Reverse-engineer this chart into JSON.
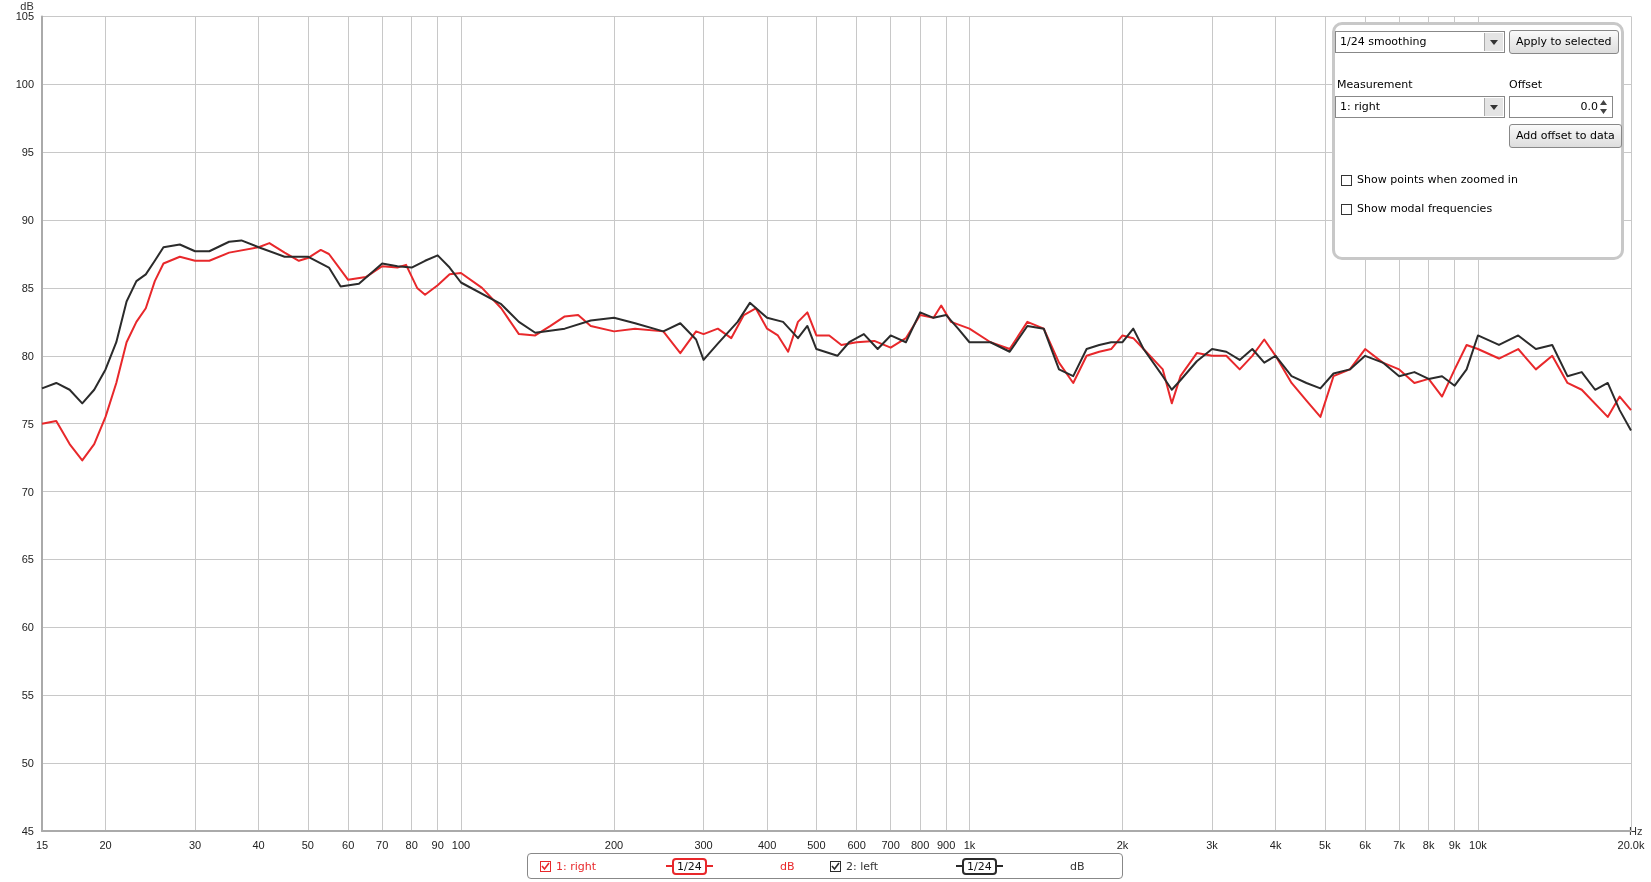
{
  "chart_data": {
    "type": "line",
    "xlabel": "Hz",
    "ylabel": "dB",
    "log": "x",
    "grid": true,
    "legend": "bottom",
    "marker": "none",
    "line_style": "solid",
    "xlim": [
      15,
      20000
    ],
    "ylim": [
      45,
      105
    ],
    "xticks": [
      15,
      20,
      30,
      40,
      50,
      60,
      70,
      80,
      90,
      100,
      200,
      300,
      400,
      500,
      600,
      700,
      800,
      900,
      {
        "value": 1000,
        "label": "1k"
      },
      {
        "value": 2000,
        "label": "2k"
      },
      {
        "value": 3000,
        "label": "3k"
      },
      {
        "value": 4000,
        "label": "4k"
      },
      {
        "value": 5000,
        "label": "5k"
      },
      {
        "value": 6000,
        "label": "6k"
      },
      {
        "value": 7000,
        "label": "7k"
      },
      {
        "value": 8000,
        "label": "8k"
      },
      {
        "value": 9000,
        "label": "9k"
      },
      {
        "value": 10000,
        "label": "10k"
      },
      {
        "value": 20000,
        "label": "20.0k"
      }
    ],
    "yticks": [
      45,
      50,
      55,
      60,
      65,
      70,
      75,
      80,
      85,
      90,
      95,
      100,
      105
    ],
    "series": [
      {
        "name": "1: right",
        "color": "#e8282b",
        "x": [
          15,
          16,
          17,
          18,
          19,
          20,
          21,
          22,
          23,
          24,
          25,
          26,
          28,
          30,
          32,
          35,
          40,
          42,
          45,
          48,
          50,
          53,
          55,
          60,
          65,
          70,
          75,
          78,
          82,
          85,
          90,
          95,
          100,
          110,
          120,
          130,
          140,
          150,
          160,
          170,
          180,
          200,
          220,
          250,
          270,
          290,
          300,
          320,
          340,
          360,
          380,
          400,
          420,
          440,
          460,
          480,
          500,
          530,
          560,
          600,
          650,
          700,
          750,
          800,
          850,
          880,
          920,
          1000,
          1100,
          1200,
          1300,
          1400,
          1500,
          1600,
          1700,
          1800,
          1900,
          2000,
          2100,
          2200,
          2400,
          2500,
          2600,
          2800,
          3000,
          3200,
          3400,
          3600,
          3800,
          4000,
          4300,
          4600,
          4900,
          5200,
          5600,
          6000,
          6500,
          7000,
          7500,
          8000,
          8500,
          9000,
          9500,
          10000,
          11000,
          12000,
          13000,
          14000,
          15000,
          16000,
          18000,
          19000,
          20000
        ],
        "values": [
          75.0,
          75.2,
          73.5,
          72.3,
          73.5,
          75.5,
          78,
          81,
          82.5,
          83.5,
          85.5,
          86.8,
          87.3,
          87.0,
          87.0,
          87.6,
          88.0,
          88.3,
          87.6,
          87.0,
          87.2,
          87.8,
          87.5,
          85.6,
          85.8,
          86.6,
          86.5,
          86.7,
          85.0,
          84.5,
          85.2,
          86.0,
          86.1,
          85.0,
          83.5,
          81.6,
          81.5,
          82.2,
          82.9,
          83.0,
          82.2,
          81.8,
          82.0,
          81.8,
          80.2,
          81.8,
          81.6,
          82.0,
          81.3,
          83.0,
          83.5,
          82.0,
          81.5,
          80.3,
          82.5,
          83.2,
          81.5,
          81.5,
          80.8,
          81.0,
          81.1,
          80.6,
          81.3,
          83.0,
          82.8,
          83.7,
          82.5,
          82.0,
          81.0,
          80.5,
          82.5,
          82.0,
          79.5,
          78.0,
          80.0,
          80.3,
          80.5,
          81.5,
          81.3,
          80.5,
          79.0,
          76.5,
          78.5,
          80.2,
          80.0,
          80.0,
          79.0,
          80.0,
          81.2,
          80.0,
          78.0,
          76.7,
          75.5,
          78.5,
          79.0,
          80.5,
          79.5,
          79.0,
          78.0,
          78.3,
          77.0,
          79.0,
          80.8,
          80.5,
          79.8,
          80.5,
          79.0,
          80.0,
          78.0,
          77.5,
          75.5,
          77.0,
          76.0
        ]
      },
      {
        "name": "2: left",
        "color": "#2b2b2b",
        "x": [
          15,
          16,
          17,
          18,
          19,
          20,
          21,
          22,
          23,
          24,
          25,
          26,
          28,
          30,
          32,
          35,
          37,
          40,
          45,
          50,
          55,
          58,
          63,
          70,
          75,
          80,
          85,
          90,
          95,
          100,
          120,
          130,
          140,
          160,
          180,
          200,
          220,
          250,
          270,
          290,
          300,
          320,
          350,
          370,
          400,
          430,
          460,
          480,
          500,
          550,
          580,
          620,
          660,
          700,
          750,
          800,
          850,
          900,
          950,
          1000,
          1100,
          1200,
          1300,
          1400,
          1500,
          1600,
          1700,
          1800,
          1900,
          2000,
          2100,
          2200,
          2400,
          2500,
          2600,
          2800,
          3000,
          3200,
          3400,
          3600,
          3800,
          4000,
          4300,
          4600,
          4900,
          5200,
          5600,
          6000,
          6500,
          7000,
          7500,
          8000,
          8500,
          9000,
          9500,
          10000,
          11000,
          12000,
          13000,
          14000,
          15000,
          16000,
          17000,
          18000,
          19000,
          20000
        ],
        "values": [
          77.6,
          78.0,
          77.5,
          76.5,
          77.5,
          79,
          81,
          84,
          85.5,
          86,
          87,
          88,
          88.2,
          87.7,
          87.7,
          88.4,
          88.5,
          88.0,
          87.3,
          87.3,
          86.5,
          85.1,
          85.3,
          86.8,
          86.6,
          86.5,
          87.0,
          87.4,
          86.5,
          85.4,
          83.8,
          82.5,
          81.7,
          82.0,
          82.6,
          82.8,
          82.4,
          81.8,
          82.4,
          81.2,
          79.7,
          80.9,
          82.5,
          83.9,
          82.8,
          82.5,
          81.3,
          82.2,
          80.5,
          80.0,
          81.0,
          81.6,
          80.5,
          81.5,
          81.0,
          83.2,
          82.8,
          83.0,
          82.0,
          81.0,
          81.0,
          80.3,
          82.2,
          82.0,
          79.0,
          78.5,
          80.5,
          80.8,
          81.0,
          81.0,
          82.0,
          80.5,
          78.5,
          77.5,
          78.2,
          79.6,
          80.5,
          80.3,
          79.7,
          80.5,
          79.5,
          80.0,
          78.5,
          78.0,
          77.6,
          78.7,
          79.0,
          80.0,
          79.5,
          78.5,
          78.8,
          78.3,
          78.5,
          77.8,
          79.0,
          81.5,
          80.8,
          81.5,
          80.5,
          80.8,
          78.5,
          78.8,
          77.5,
          78.0,
          76.0,
          74.5
        ]
      }
    ],
    "annotations": [
      "1/24 smoothing",
      "Apply to selected",
      "Measurement",
      "1: right",
      "Offset",
      "0.0",
      "Add offset to data",
      "Show points when zoomed in",
      "Show modal frequencies",
      "1/24",
      "dB",
      "1/24",
      "dB"
    ]
  }
}
